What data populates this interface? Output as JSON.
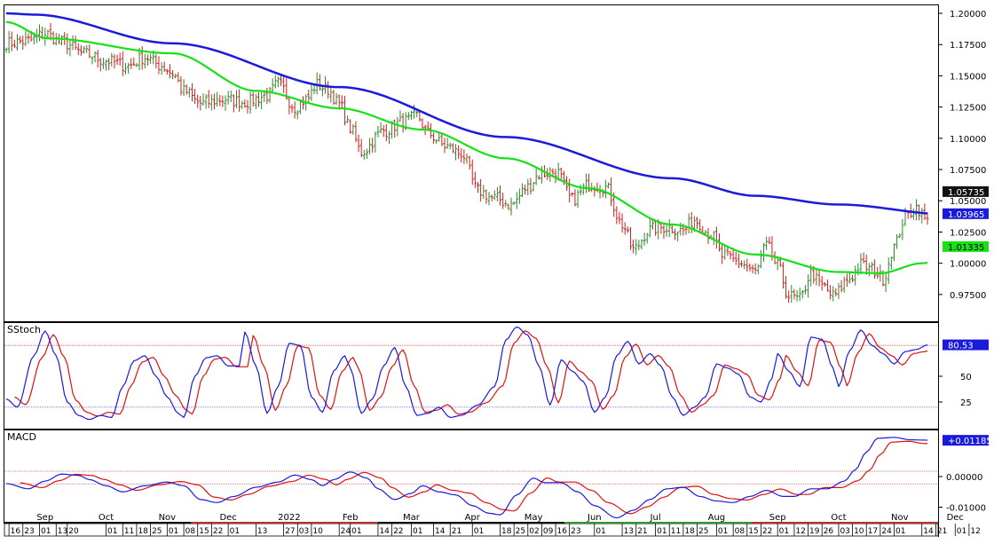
{
  "chart_data": {
    "type": "financial-chart",
    "panels": [
      {
        "name": "price",
        "type": "ohlc",
        "ylim": [
          0.955,
          1.205
        ],
        "yticks": [
          "1.20000",
          "1.17500",
          "1.15000",
          "1.12500",
          "1.10000",
          "1.07500",
          "1.05000",
          "1.02500",
          "1.00000",
          "0.97500"
        ],
        "ytick_values": [
          1.2,
          1.175,
          1.15,
          1.125,
          1.1,
          1.075,
          1.05,
          1.025,
          1.0,
          0.975
        ],
        "price_anchors": [
          [
            0,
            1.176
          ],
          [
            8,
            1.178
          ],
          [
            14,
            1.184
          ],
          [
            20,
            1.177
          ],
          [
            28,
            1.168
          ],
          [
            36,
            1.162
          ],
          [
            44,
            1.158
          ],
          [
            50,
            1.165
          ],
          [
            56,
            1.158
          ],
          [
            60,
            1.152
          ],
          [
            64,
            1.138
          ],
          [
            70,
            1.128
          ],
          [
            78,
            1.131
          ],
          [
            86,
            1.129
          ],
          [
            94,
            1.134
          ],
          [
            98,
            1.144
          ],
          [
            104,
            1.125
          ],
          [
            108,
            1.131
          ],
          [
            112,
            1.143
          ],
          [
            116,
            1.139
          ],
          [
            120,
            1.127
          ],
          [
            124,
            1.108
          ],
          [
            128,
            1.089
          ],
          [
            136,
            1.106
          ],
          [
            144,
            1.114
          ],
          [
            148,
            1.118
          ],
          [
            152,
            1.104
          ],
          [
            158,
            1.094
          ],
          [
            164,
            1.088
          ],
          [
            170,
            1.058
          ],
          [
            176,
            1.052
          ],
          [
            182,
            1.047
          ],
          [
            188,
            1.061
          ],
          [
            192,
            1.071
          ],
          [
            198,
            1.074
          ],
          [
            204,
            1.051
          ],
          [
            210,
            1.063
          ],
          [
            216,
            1.061
          ],
          [
            222,
            1.031
          ],
          [
            226,
            1.011
          ],
          [
            232,
            1.027
          ],
          [
            238,
            1.029
          ],
          [
            244,
            1.026
          ],
          [
            248,
            1.035
          ],
          [
            254,
            1.023
          ],
          [
            258,
            1.006
          ],
          [
            264,
            1.001
          ],
          [
            270,
            0.993
          ],
          [
            274,
            1.014
          ],
          [
            278,
            0.998
          ],
          [
            282,
            0.974
          ],
          [
            286,
            0.971
          ],
          [
            290,
            0.992
          ],
          [
            294,
            0.982
          ],
          [
            298,
            0.974
          ],
          [
            304,
            0.988
          ],
          [
            308,
            0.999
          ],
          [
            312,
            0.995
          ],
          [
            316,
            0.988
          ],
          [
            320,
            1.013
          ],
          [
            324,
            1.037
          ],
          [
            328,
            1.045
          ],
          [
            332,
            1.033
          ],
          [
            338,
            1.041
          ],
          [
            344,
            1.049
          ],
          [
            350,
            1.057
          ]
        ],
        "ma_long_anchors": [
          [
            0,
            1.2
          ],
          [
            10,
            1.199
          ],
          [
            60,
            1.176
          ],
          [
            120,
            1.141
          ],
          [
            180,
            1.101
          ],
          [
            240,
            1.068
          ],
          [
            270,
            1.054
          ],
          [
            300,
            1.047
          ],
          [
            340,
            1.039
          ],
          [
            350,
            1.04
          ]
        ],
        "ma_short_anchors": [
          [
            0,
            1.193
          ],
          [
            15,
            1.18
          ],
          [
            60,
            1.168
          ],
          [
            90,
            1.138
          ],
          [
            120,
            1.124
          ],
          [
            150,
            1.107
          ],
          [
            180,
            1.084
          ],
          [
            210,
            1.06
          ],
          [
            240,
            1.031
          ],
          [
            270,
            1.007
          ],
          [
            300,
            0.993
          ],
          [
            315,
            0.992
          ],
          [
            330,
            1.0
          ],
          [
            340,
            1.005
          ],
          [
            350,
            1.013
          ]
        ],
        "labels": {
          "last_close": "1.05735",
          "long_ma": "1.03965",
          "short_ma": "1.01335"
        },
        "label_values": {
          "last_close": 1.05735,
          "long_ma": 1.03965,
          "short_ma": 1.01335
        },
        "colors": {
          "long_ma": "#1a1adc",
          "short_ma": "#17e017",
          "up_bar": "#2c8a2c",
          "down_bar": "#cc2020",
          "last_close_label_bg": "#111111",
          "long_ma_label_bg": "#1a1adc",
          "short_ma_label_bg": "#17e017"
        }
      },
      {
        "name": "SStoch",
        "title": "SStoch",
        "type": "line",
        "ylim": [
          0,
          100
        ],
        "yticks": [
          "50",
          "25"
        ],
        "ytick_values": [
          50,
          25
        ],
        "reference_lines": [
          80,
          20
        ],
        "labels": {
          "k_value": "80.53"
        },
        "label_values": {
          "k_value": 80.53
        },
        "k_anchors": [
          [
            0,
            28
          ],
          [
            4,
            20
          ],
          [
            10,
            70
          ],
          [
            14,
            94
          ],
          [
            18,
            70
          ],
          [
            22,
            25
          ],
          [
            26,
            12
          ],
          [
            30,
            8
          ],
          [
            34,
            12
          ],
          [
            38,
            10
          ],
          [
            42,
            40
          ],
          [
            46,
            65
          ],
          [
            50,
            70
          ],
          [
            54,
            50
          ],
          [
            58,
            30
          ],
          [
            62,
            14
          ],
          [
            64,
            10
          ],
          [
            68,
            50
          ],
          [
            72,
            68
          ],
          [
            76,
            70
          ],
          [
            80,
            60
          ],
          [
            84,
            60
          ],
          [
            86,
            93
          ],
          [
            90,
            60
          ],
          [
            94,
            14
          ],
          [
            98,
            40
          ],
          [
            102,
            82
          ],
          [
            106,
            80
          ],
          [
            110,
            30
          ],
          [
            114,
            15
          ],
          [
            118,
            55
          ],
          [
            122,
            70
          ],
          [
            124,
            58
          ],
          [
            128,
            14
          ],
          [
            132,
            28
          ],
          [
            136,
            60
          ],
          [
            140,
            78
          ],
          [
            144,
            40
          ],
          [
            148,
            12
          ],
          [
            152,
            14
          ],
          [
            156,
            20
          ],
          [
            160,
            10
          ],
          [
            164,
            12
          ],
          [
            170,
            22
          ],
          [
            176,
            40
          ],
          [
            180,
            85
          ],
          [
            184,
            98
          ],
          [
            188,
            90
          ],
          [
            192,
            60
          ],
          [
            196,
            22
          ],
          [
            200,
            66
          ],
          [
            204,
            55
          ],
          [
            208,
            45
          ],
          [
            212,
            15
          ],
          [
            216,
            30
          ],
          [
            220,
            70
          ],
          [
            224,
            84
          ],
          [
            228,
            62
          ],
          [
            232,
            72
          ],
          [
            236,
            60
          ],
          [
            240,
            30
          ],
          [
            244,
            12
          ],
          [
            248,
            20
          ],
          [
            252,
            30
          ],
          [
            256,
            62
          ],
          [
            260,
            58
          ],
          [
            264,
            52
          ],
          [
            268,
            30
          ],
          [
            272,
            25
          ],
          [
            276,
            48
          ],
          [
            278,
            72
          ],
          [
            282,
            55
          ],
          [
            286,
            40
          ],
          [
            290,
            88
          ],
          [
            294,
            86
          ],
          [
            298,
            58
          ],
          [
            300,
            40
          ],
          [
            304,
            75
          ],
          [
            308,
            95
          ],
          [
            312,
            80
          ],
          [
            316,
            72
          ],
          [
            320,
            62
          ],
          [
            324,
            74
          ],
          [
            328,
            76
          ],
          [
            332,
            80.5
          ]
        ],
        "colors": {
          "k": "#1a1adc",
          "d": "#e01010",
          "ref": "#e05050",
          "ref_low": "#6a6aff",
          "label_bg": "#1a1adc"
        }
      },
      {
        "name": "MACD",
        "title": "MACD",
        "type": "line",
        "ylim": [
          -0.0145,
          0.0145
        ],
        "yticks": [
          "0.00000",
          "-0.01000"
        ],
        "ytick_values": [
          0.0,
          -0.01
        ],
        "reference_lines": [
          0.00175,
          -0.0024
        ],
        "labels": {
          "macd_value": "+0.01185"
        },
        "label_values": {
          "macd_value": 0.01185
        },
        "macd_anchors": [
          [
            0,
            -0.0023
          ],
          [
            8,
            -0.004
          ],
          [
            14,
            -0.0015
          ],
          [
            20,
            0.0008
          ],
          [
            26,
            0.0004
          ],
          [
            30,
            -0.001
          ],
          [
            36,
            -0.003
          ],
          [
            42,
            -0.005
          ],
          [
            50,
            -0.003
          ],
          [
            58,
            -0.0018
          ],
          [
            64,
            -0.003
          ],
          [
            70,
            -0.0075
          ],
          [
            76,
            -0.0085
          ],
          [
            82,
            -0.0065
          ],
          [
            90,
            -0.0035
          ],
          [
            98,
            -0.0018
          ],
          [
            104,
            0.0005
          ],
          [
            110,
            -0.001
          ],
          [
            114,
            -0.003
          ],
          [
            118,
            -0.001
          ],
          [
            124,
            0.0015
          ],
          [
            130,
            -0.0005
          ],
          [
            134,
            -0.004
          ],
          [
            140,
            -0.0075
          ],
          [
            146,
            -0.0055
          ],
          [
            150,
            -0.003
          ],
          [
            156,
            -0.005
          ],
          [
            162,
            -0.006
          ],
          [
            168,
            -0.0095
          ],
          [
            174,
            -0.012
          ],
          [
            178,
            -0.0125
          ],
          [
            184,
            -0.006
          ],
          [
            190,
            -0.0005
          ],
          [
            194,
            -0.002
          ],
          [
            200,
            -0.002
          ],
          [
            206,
            -0.005
          ],
          [
            212,
            -0.0095
          ],
          [
            220,
            -0.0135
          ],
          [
            226,
            -0.011
          ],
          [
            232,
            -0.0075
          ],
          [
            238,
            -0.004
          ],
          [
            244,
            -0.0035
          ],
          [
            250,
            -0.0065
          ],
          [
            256,
            -0.008
          ],
          [
            262,
            -0.0085
          ],
          [
            268,
            -0.0065
          ],
          [
            274,
            -0.0045
          ],
          [
            280,
            -0.0065
          ],
          [
            284,
            -0.0065
          ],
          [
            290,
            -0.004
          ],
          [
            296,
            -0.004
          ],
          [
            302,
            -0.0015
          ],
          [
            306,
            0.0022
          ],
          [
            310,
            0.008
          ],
          [
            314,
            0.0125
          ],
          [
            320,
            0.0128
          ],
          [
            326,
            0.012
          ],
          [
            332,
            0.0119
          ]
        ],
        "colors": {
          "macd": "#1a1adc",
          "signal": "#e01010",
          "ref": "#e05050",
          "label_bg": "#1a1adc"
        }
      }
    ],
    "x_axis": {
      "months": [
        {
          "label": "Sep",
          "bar": 14
        },
        {
          "label": "Oct",
          "bar": 36
        },
        {
          "label": "Nov",
          "bar": 58
        },
        {
          "label": "Dec",
          "bar": 80
        },
        {
          "label": "2022",
          "bar": 102
        },
        {
          "label": "Feb",
          "bar": 124
        },
        {
          "label": "Mar",
          "bar": 146
        },
        {
          "label": "Apr",
          "bar": 168
        },
        {
          "label": "May",
          "bar": 190
        },
        {
          "label": "Jun",
          "bar": 212
        },
        {
          "label": "Jul",
          "bar": 234
        },
        {
          "label": "Aug",
          "bar": 256
        },
        {
          "label": "Sep",
          "bar": 278
        },
        {
          "label": "Oct",
          "bar": 300
        },
        {
          "label": "Nov",
          "bar": 322
        },
        {
          "label": "Dec",
          "bar": 342
        }
      ],
      "day_labels": [
        "16",
        "23",
        "01",
        "13",
        "20",
        "01",
        "11",
        "18",
        "25",
        "01",
        "08",
        "15",
        "22",
        "01",
        "13",
        "27",
        "03",
        "10",
        "24",
        "01",
        "14",
        "22",
        "01",
        "14",
        "21",
        "01",
        "18",
        "25",
        "02",
        "09",
        "16",
        "23",
        "01",
        "13",
        "21",
        "01",
        "11",
        "18",
        "25",
        "01",
        "08",
        "15",
        "22",
        "01",
        "12",
        "19",
        "26",
        "03",
        "10",
        "17",
        "24",
        "01",
        "14",
        "21",
        "01",
        "12"
      ],
      "day_label_bars": [
        1,
        6,
        12,
        18,
        22,
        36,
        42,
        47,
        52,
        58,
        64,
        69,
        74,
        80,
        90,
        100,
        105,
        110,
        120,
        124,
        134,
        139,
        146,
        154,
        160,
        168,
        178,
        183,
        188,
        193,
        198,
        203,
        212,
        222,
        227,
        234,
        239,
        244,
        249,
        256,
        262,
        267,
        272,
        278,
        284,
        289,
        294,
        300,
        305,
        310,
        315,
        320,
        330,
        335,
        342,
        347
      ],
      "year_strip_colors": [
        "#111111",
        "#b23232",
        "#111111",
        "#2c9a2c",
        "#b23232"
      ]
    },
    "n_bars": 352,
    "last_bar": 332
  }
}
